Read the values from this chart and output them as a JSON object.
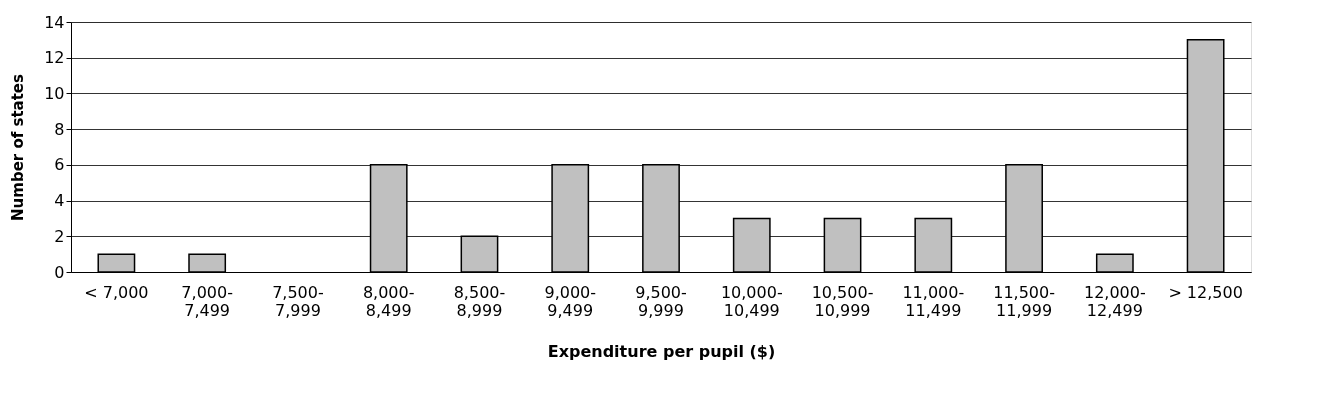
{
  "chart_data": {
    "type": "bar",
    "xlabel": "Expenditure per pupil ($)",
    "ylabel": "Number of states",
    "categories": [
      "< 7,000",
      "7,000-\n7,499",
      "7,500-\n7,999",
      "8,000-\n8,499",
      "8,500-\n8,999",
      "9,000-\n9,499",
      "9,500-\n9,999",
      "10,000-\n10,499",
      "10,500-\n10,999",
      "11,000-\n11,499",
      "11,500-\n11,999",
      "12,000-\n12,499",
      "> 12,500"
    ],
    "values": [
      1,
      1,
      0,
      6,
      2,
      6,
      6,
      3,
      3,
      3,
      6,
      1,
      13
    ],
    "color": "#c0c0c0",
    "ylim": [
      0,
      14
    ],
    "yticks": [
      0,
      2,
      4,
      6,
      8,
      10,
      12,
      14
    ],
    "grid": "y"
  }
}
